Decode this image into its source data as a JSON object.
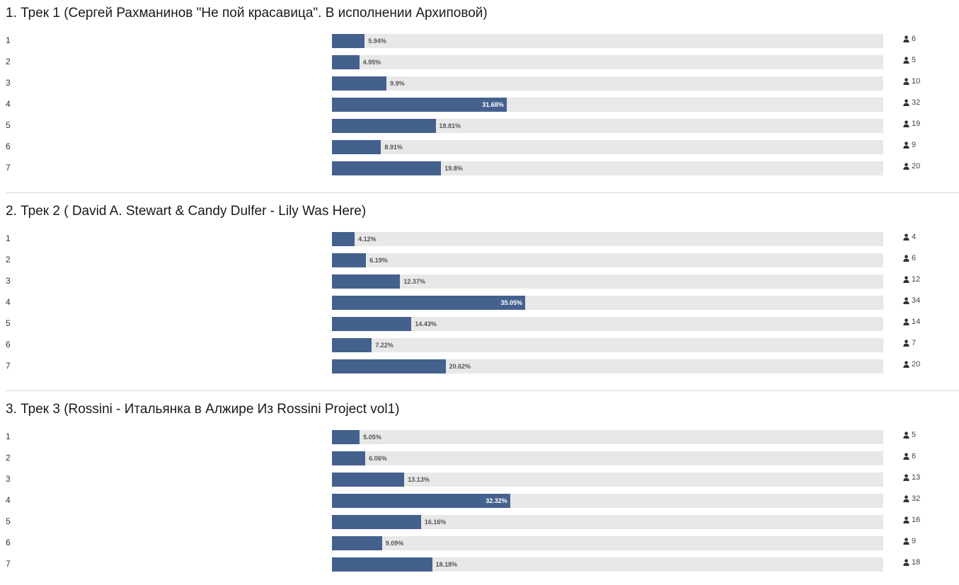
{
  "questions": [
    {
      "title": "1. Трек 1 (Сергей Рахманинов \"Не пой красавица\". В исполнении Архиповой)",
      "options": [
        {
          "label": "1",
          "percent": 5.94,
          "percent_label": "5.94%",
          "votes": "6"
        },
        {
          "label": "2",
          "percent": 4.95,
          "percent_label": "4.95%",
          "votes": "5"
        },
        {
          "label": "3",
          "percent": 9.9,
          "percent_label": "9.9%",
          "votes": "10"
        },
        {
          "label": "4",
          "percent": 31.68,
          "percent_label": "31.68%",
          "votes": "32",
          "leader": true
        },
        {
          "label": "5",
          "percent": 18.81,
          "percent_label": "18.81%",
          "votes": "19"
        },
        {
          "label": "6",
          "percent": 8.91,
          "percent_label": "8.91%",
          "votes": "9"
        },
        {
          "label": "7",
          "percent": 19.8,
          "percent_label": "19.8%",
          "votes": "20"
        }
      ]
    },
    {
      "title": "2. Трек 2 ( David A. Stewart & Candy Dulfer - Lily Was Here)",
      "options": [
        {
          "label": "1",
          "percent": 4.12,
          "percent_label": "4.12%",
          "votes": "4"
        },
        {
          "label": "2",
          "percent": 6.19,
          "percent_label": "6.19%",
          "votes": "6"
        },
        {
          "label": "3",
          "percent": 12.37,
          "percent_label": "12.37%",
          "votes": "12"
        },
        {
          "label": "4",
          "percent": 35.05,
          "percent_label": "35.05%",
          "votes": "34",
          "leader": true
        },
        {
          "label": "5",
          "percent": 14.43,
          "percent_label": "14.43%",
          "votes": "14"
        },
        {
          "label": "6",
          "percent": 7.22,
          "percent_label": "7.22%",
          "votes": "7"
        },
        {
          "label": "7",
          "percent": 20.62,
          "percent_label": "20.62%",
          "votes": "20"
        }
      ]
    },
    {
      "title": "3. Трек 3 (Rossini - Итальянка в Алжире Из Rossini Project vol1)",
      "options": [
        {
          "label": "1",
          "percent": 5.05,
          "percent_label": "5.05%",
          "votes": "5"
        },
        {
          "label": "2",
          "percent": 6.06,
          "percent_label": "6.06%",
          "votes": "6"
        },
        {
          "label": "3",
          "percent": 13.13,
          "percent_label": "13.13%",
          "votes": "13"
        },
        {
          "label": "4",
          "percent": 32.32,
          "percent_label": "32.32%",
          "votes": "32",
          "leader": true
        },
        {
          "label": "5",
          "percent": 16.16,
          "percent_label": "16.16%",
          "votes": "16"
        },
        {
          "label": "6",
          "percent": 9.09,
          "percent_label": "9.09%",
          "votes": "9"
        },
        {
          "label": "7",
          "percent": 18.18,
          "percent_label": "18.18%",
          "votes": "18"
        }
      ]
    }
  ],
  "icons": {
    "votes": "user-icon"
  },
  "colors": {
    "bar_fill": "#44618e",
    "bar_track": "#e8e8e8",
    "separator": "#d9d9d9"
  }
}
